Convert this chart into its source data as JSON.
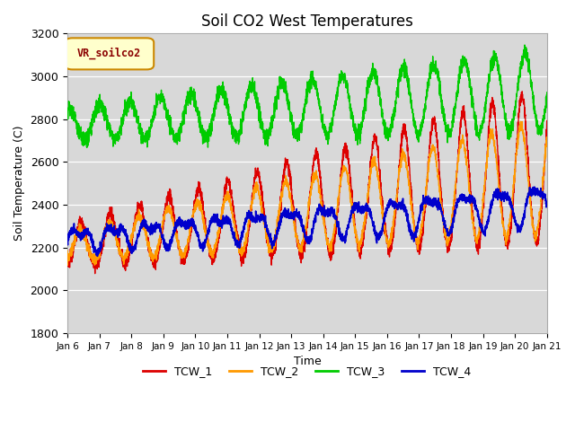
{
  "title": "Soil CO2 West Temperatures",
  "xlabel": "Time",
  "ylabel": "Soil Temperature (C)",
  "legend_label": "VR_soilco2",
  "series_labels": [
    "TCW_1",
    "TCW_2",
    "TCW_3",
    "TCW_4"
  ],
  "series_colors": [
    "#dd0000",
    "#ff9900",
    "#00cc00",
    "#0000cc"
  ],
  "ylim": [
    1800,
    3200
  ],
  "xlim": [
    0,
    15
  ],
  "yticks": [
    1800,
    2000,
    2200,
    2400,
    2600,
    2800,
    3000,
    3200
  ],
  "background_color": "#e8e8e8",
  "plot_bg_color": "#d8d8d8",
  "days": 15,
  "points_per_day": 240,
  "start_day": 6
}
